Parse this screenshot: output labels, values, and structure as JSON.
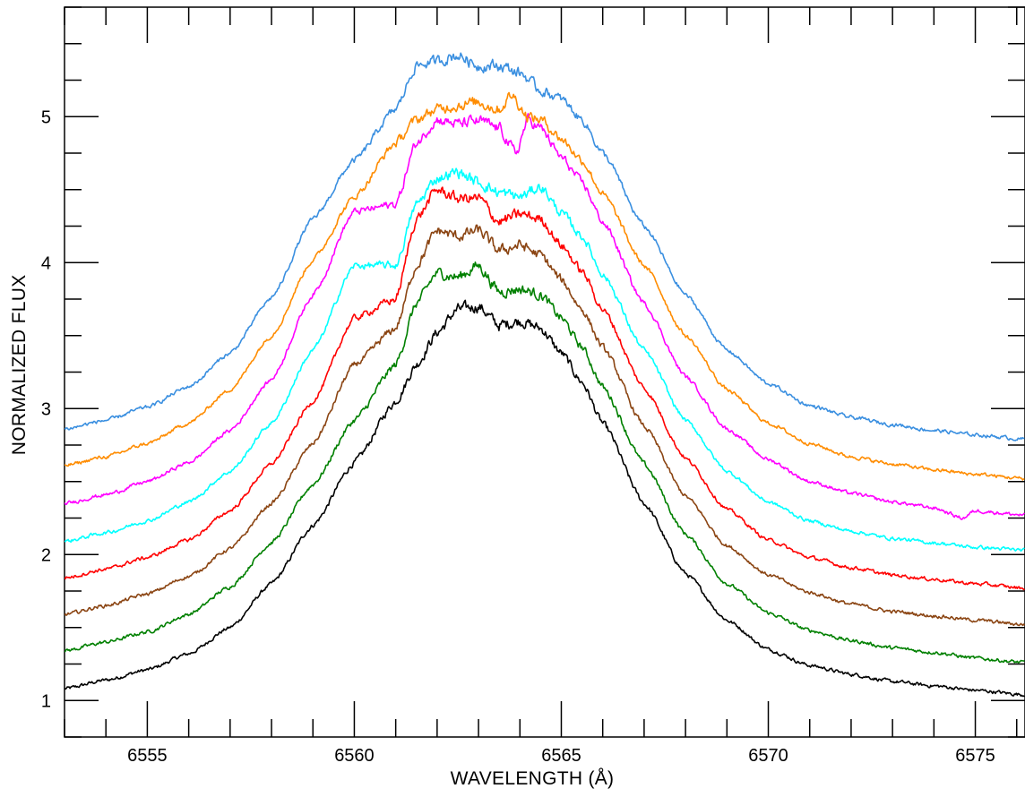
{
  "chart_data": {
    "type": "line",
    "title": "",
    "xlabel": "WAVELENGTH (Å)",
    "ylabel": "NORMALIZED FLUX",
    "xlim": [
      6553.0,
      6576.2
    ],
    "ylim": [
      0.75,
      5.75
    ],
    "grid": false,
    "legend": "none",
    "x_ticks": [
      6555,
      6560,
      6565,
      6570,
      6575
    ],
    "y_ticks": [
      1,
      2,
      3,
      4,
      5
    ],
    "series": [
      {
        "color": "#000000",
        "points": [
          [
            6553.0,
            1.08
          ],
          [
            6554.0,
            1.14
          ],
          [
            6555.0,
            1.21
          ],
          [
            6556.0,
            1.32
          ],
          [
            6557.0,
            1.5
          ],
          [
            6558.0,
            1.8
          ],
          [
            6559.0,
            2.2
          ],
          [
            6560.0,
            2.63
          ],
          [
            6561.0,
            3.05
          ],
          [
            6561.5,
            3.3
          ],
          [
            6562.0,
            3.52
          ],
          [
            6562.5,
            3.68
          ],
          [
            6563.0,
            3.7
          ],
          [
            6563.5,
            3.57
          ],
          [
            6564.0,
            3.6
          ],
          [
            6564.5,
            3.55
          ],
          [
            6565.0,
            3.38
          ],
          [
            6565.5,
            3.18
          ],
          [
            6566.0,
            2.9
          ],
          [
            6567.0,
            2.35
          ],
          [
            6568.0,
            1.87
          ],
          [
            6569.0,
            1.55
          ],
          [
            6570.0,
            1.35
          ],
          [
            6571.0,
            1.24
          ],
          [
            6572.0,
            1.18
          ],
          [
            6573.0,
            1.13
          ],
          [
            6574.0,
            1.1
          ],
          [
            6575.0,
            1.07
          ],
          [
            6576.2,
            1.04
          ]
        ]
      },
      {
        "color": "#008000",
        "points": [
          [
            6553.0,
            1.34
          ],
          [
            6554.0,
            1.4
          ],
          [
            6555.0,
            1.47
          ],
          [
            6556.0,
            1.59
          ],
          [
            6557.0,
            1.78
          ],
          [
            6558.0,
            2.08
          ],
          [
            6559.0,
            2.48
          ],
          [
            6560.0,
            2.92
          ],
          [
            6561.0,
            3.3
          ],
          [
            6561.5,
            3.72
          ],
          [
            6562.0,
            3.93
          ],
          [
            6562.5,
            3.9
          ],
          [
            6563.0,
            3.98
          ],
          [
            6563.5,
            3.8
          ],
          [
            6564.0,
            3.82
          ],
          [
            6564.5,
            3.78
          ],
          [
            6565.0,
            3.62
          ],
          [
            6565.5,
            3.42
          ],
          [
            6566.0,
            3.15
          ],
          [
            6567.0,
            2.62
          ],
          [
            6568.0,
            2.14
          ],
          [
            6569.0,
            1.8
          ],
          [
            6570.0,
            1.6
          ],
          [
            6571.0,
            1.48
          ],
          [
            6572.0,
            1.41
          ],
          [
            6573.0,
            1.36
          ],
          [
            6574.0,
            1.33
          ],
          [
            6575.0,
            1.29
          ],
          [
            6576.2,
            1.26
          ]
        ]
      },
      {
        "color": "#8B4513",
        "points": [
          [
            6553.0,
            1.59
          ],
          [
            6554.0,
            1.65
          ],
          [
            6555.0,
            1.73
          ],
          [
            6556.0,
            1.85
          ],
          [
            6557.0,
            2.04
          ],
          [
            6558.0,
            2.35
          ],
          [
            6559.0,
            2.76
          ],
          [
            6560.0,
            3.3
          ],
          [
            6561.0,
            3.55
          ],
          [
            6561.5,
            3.98
          ],
          [
            6562.0,
            4.22
          ],
          [
            6562.5,
            4.18
          ],
          [
            6563.0,
            4.22
          ],
          [
            6563.5,
            4.08
          ],
          [
            6564.0,
            4.12
          ],
          [
            6564.5,
            4.05
          ],
          [
            6565.0,
            3.88
          ],
          [
            6565.5,
            3.68
          ],
          [
            6566.0,
            3.42
          ],
          [
            6567.0,
            2.88
          ],
          [
            6568.0,
            2.4
          ],
          [
            6569.0,
            2.06
          ],
          [
            6570.0,
            1.86
          ],
          [
            6571.0,
            1.74
          ],
          [
            6572.0,
            1.66
          ],
          [
            6573.0,
            1.61
          ],
          [
            6574.0,
            1.58
          ],
          [
            6575.0,
            1.55
          ],
          [
            6576.2,
            1.52
          ]
        ]
      },
      {
        "color": "#FF0000",
        "points": [
          [
            6553.0,
            1.84
          ],
          [
            6554.0,
            1.9
          ],
          [
            6555.0,
            1.98
          ],
          [
            6556.0,
            2.1
          ],
          [
            6557.0,
            2.3
          ],
          [
            6558.0,
            2.62
          ],
          [
            6559.0,
            3.05
          ],
          [
            6560.0,
            3.62
          ],
          [
            6561.0,
            3.75
          ],
          [
            6561.5,
            4.3
          ],
          [
            6562.0,
            4.5
          ],
          [
            6562.5,
            4.44
          ],
          [
            6563.0,
            4.44
          ],
          [
            6563.5,
            4.28
          ],
          [
            6564.0,
            4.33
          ],
          [
            6564.5,
            4.3
          ],
          [
            6565.0,
            4.12
          ],
          [
            6565.5,
            3.94
          ],
          [
            6566.0,
            3.68
          ],
          [
            6567.0,
            3.14
          ],
          [
            6568.0,
            2.66
          ],
          [
            6569.0,
            2.31
          ],
          [
            6570.0,
            2.1
          ],
          [
            6571.0,
            1.98
          ],
          [
            6572.0,
            1.91
          ],
          [
            6573.0,
            1.86
          ],
          [
            6574.0,
            1.83
          ],
          [
            6575.0,
            1.8
          ],
          [
            6576.2,
            1.77
          ]
        ]
      },
      {
        "color": "#00FFFF",
        "points": [
          [
            6553.0,
            2.09
          ],
          [
            6554.0,
            2.15
          ],
          [
            6555.0,
            2.23
          ],
          [
            6556.0,
            2.36
          ],
          [
            6557.0,
            2.57
          ],
          [
            6558.0,
            2.9
          ],
          [
            6559.0,
            3.4
          ],
          [
            6560.0,
            3.98
          ],
          [
            6561.0,
            3.98
          ],
          [
            6561.5,
            4.4
          ],
          [
            6562.0,
            4.58
          ],
          [
            6562.5,
            4.62
          ],
          [
            6563.0,
            4.55
          ],
          [
            6563.5,
            4.48
          ],
          [
            6564.0,
            4.45
          ],
          [
            6564.5,
            4.52
          ],
          [
            6565.0,
            4.34
          ],
          [
            6565.5,
            4.18
          ],
          [
            6566.0,
            3.92
          ],
          [
            6567.0,
            3.4
          ],
          [
            6568.0,
            2.92
          ],
          [
            6569.0,
            2.57
          ],
          [
            6570.0,
            2.36
          ],
          [
            6571.0,
            2.23
          ],
          [
            6572.0,
            2.16
          ],
          [
            6573.0,
            2.11
          ],
          [
            6574.0,
            2.08
          ],
          [
            6575.0,
            2.05
          ],
          [
            6576.2,
            2.03
          ]
        ]
      },
      {
        "color": "#FF00FF",
        "points": [
          [
            6553.0,
            2.35
          ],
          [
            6554.0,
            2.41
          ],
          [
            6555.0,
            2.5
          ],
          [
            6556.0,
            2.63
          ],
          [
            6557.0,
            2.85
          ],
          [
            6558.0,
            3.2
          ],
          [
            6559.0,
            3.78
          ],
          [
            6560.0,
            4.35
          ],
          [
            6561.0,
            4.4
          ],
          [
            6561.5,
            4.82
          ],
          [
            6562.0,
            4.98
          ],
          [
            6562.5,
            4.95
          ],
          [
            6563.0,
            4.97
          ],
          [
            6563.5,
            4.92
          ],
          [
            6563.9,
            4.75
          ],
          [
            6564.2,
            4.98
          ],
          [
            6564.5,
            4.92
          ],
          [
            6565.0,
            4.72
          ],
          [
            6565.5,
            4.55
          ],
          [
            6566.0,
            4.28
          ],
          [
            6567.0,
            3.72
          ],
          [
            6568.0,
            3.22
          ],
          [
            6569.0,
            2.86
          ],
          [
            6570.0,
            2.65
          ],
          [
            6571.0,
            2.5
          ],
          [
            6572.0,
            2.42
          ],
          [
            6573.0,
            2.36
          ],
          [
            6574.0,
            2.32
          ],
          [
            6574.7,
            2.25
          ],
          [
            6575.0,
            2.3
          ],
          [
            6576.2,
            2.27
          ]
        ]
      },
      {
        "color": "#FF8C00",
        "points": [
          [
            6553.0,
            2.61
          ],
          [
            6554.0,
            2.67
          ],
          [
            6555.0,
            2.76
          ],
          [
            6556.0,
            2.9
          ],
          [
            6557.0,
            3.13
          ],
          [
            6558.0,
            3.5
          ],
          [
            6559.0,
            4.02
          ],
          [
            6560.0,
            4.45
          ],
          [
            6561.0,
            4.82
          ],
          [
            6561.5,
            4.98
          ],
          [
            6562.0,
            5.05
          ],
          [
            6562.5,
            5.08
          ],
          [
            6563.0,
            5.1
          ],
          [
            6563.5,
            5.05
          ],
          [
            6563.8,
            5.15
          ],
          [
            6564.2,
            5.0
          ],
          [
            6564.5,
            4.98
          ],
          [
            6565.0,
            4.85
          ],
          [
            6565.5,
            4.7
          ],
          [
            6566.0,
            4.47
          ],
          [
            6567.0,
            3.98
          ],
          [
            6568.0,
            3.5
          ],
          [
            6569.0,
            3.13
          ],
          [
            6570.0,
            2.9
          ],
          [
            6571.0,
            2.76
          ],
          [
            6572.0,
            2.67
          ],
          [
            6573.0,
            2.62
          ],
          [
            6574.0,
            2.58
          ],
          [
            6575.0,
            2.55
          ],
          [
            6576.2,
            2.52
          ]
        ]
      },
      {
        "color": "#3A8FE0",
        "points": [
          [
            6553.0,
            2.86
          ],
          [
            6554.0,
            2.92
          ],
          [
            6555.0,
            3.01
          ],
          [
            6556.0,
            3.15
          ],
          [
            6557.0,
            3.38
          ],
          [
            6558.0,
            3.76
          ],
          [
            6559.0,
            4.3
          ],
          [
            6560.0,
            4.7
          ],
          [
            6561.0,
            5.05
          ],
          [
            6561.5,
            5.35
          ],
          [
            6562.0,
            5.38
          ],
          [
            6562.5,
            5.42
          ],
          [
            6563.0,
            5.35
          ],
          [
            6563.5,
            5.35
          ],
          [
            6564.0,
            5.3
          ],
          [
            6564.5,
            5.18
          ],
          [
            6565.0,
            5.12
          ],
          [
            6565.5,
            4.98
          ],
          [
            6566.0,
            4.75
          ],
          [
            6567.0,
            4.25
          ],
          [
            6568.0,
            3.78
          ],
          [
            6569.0,
            3.4
          ],
          [
            6570.0,
            3.17
          ],
          [
            6571.0,
            3.02
          ],
          [
            6572.0,
            2.94
          ],
          [
            6573.0,
            2.89
          ],
          [
            6574.0,
            2.85
          ],
          [
            6575.0,
            2.82
          ],
          [
            6576.2,
            2.79
          ]
        ]
      }
    ]
  }
}
